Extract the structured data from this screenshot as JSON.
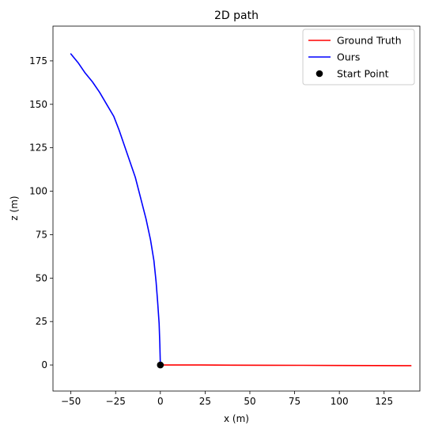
{
  "chart_data": {
    "type": "line",
    "title": "2D path",
    "xlabel": "x (m)",
    "ylabel": "z (m)",
    "xlim": [
      -60,
      145
    ],
    "ylim": [
      -15,
      195
    ],
    "xticks": [
      -50,
      -25,
      0,
      25,
      50,
      75,
      100,
      125
    ],
    "yticks": [
      0,
      25,
      50,
      75,
      100,
      125,
      150,
      175
    ],
    "xtick_labels": [
      "−50",
      "−25",
      "0",
      "25",
      "50",
      "75",
      "100",
      "125"
    ],
    "ytick_labels": [
      "0",
      "25",
      "50",
      "75",
      "100",
      "125",
      "150",
      "175"
    ],
    "grid": false,
    "legend_position": "top-right",
    "series": [
      {
        "name": "Ground Truth",
        "color": "#ff0000",
        "x": [
          0,
          20,
          40,
          60,
          80,
          100,
          120,
          140
        ],
        "y": [
          0,
          0,
          -0.1,
          -0.15,
          -0.2,
          -0.3,
          -0.35,
          -0.4
        ]
      },
      {
        "name": "Ours",
        "color": "#0000ff",
        "x": [
          0,
          -0.3,
          -0.7,
          -1.5,
          -2.4,
          -3.6,
          -5.5,
          -8.0,
          -11.0,
          -14.0,
          -17.0,
          -20.0,
          -23.0,
          -26.0,
          -30.0,
          -34.0,
          -38.0,
          -42.0,
          -46.0,
          -50.0
        ],
        "y": [
          0,
          12,
          24,
          36,
          48,
          60,
          72,
          84,
          96,
          108,
          117,
          126,
          135,
          143,
          150,
          157,
          163,
          168,
          174,
          179
        ]
      }
    ],
    "markers": [
      {
        "name": "Start Point",
        "color": "#000000",
        "x": 0,
        "y": 0
      }
    ]
  }
}
